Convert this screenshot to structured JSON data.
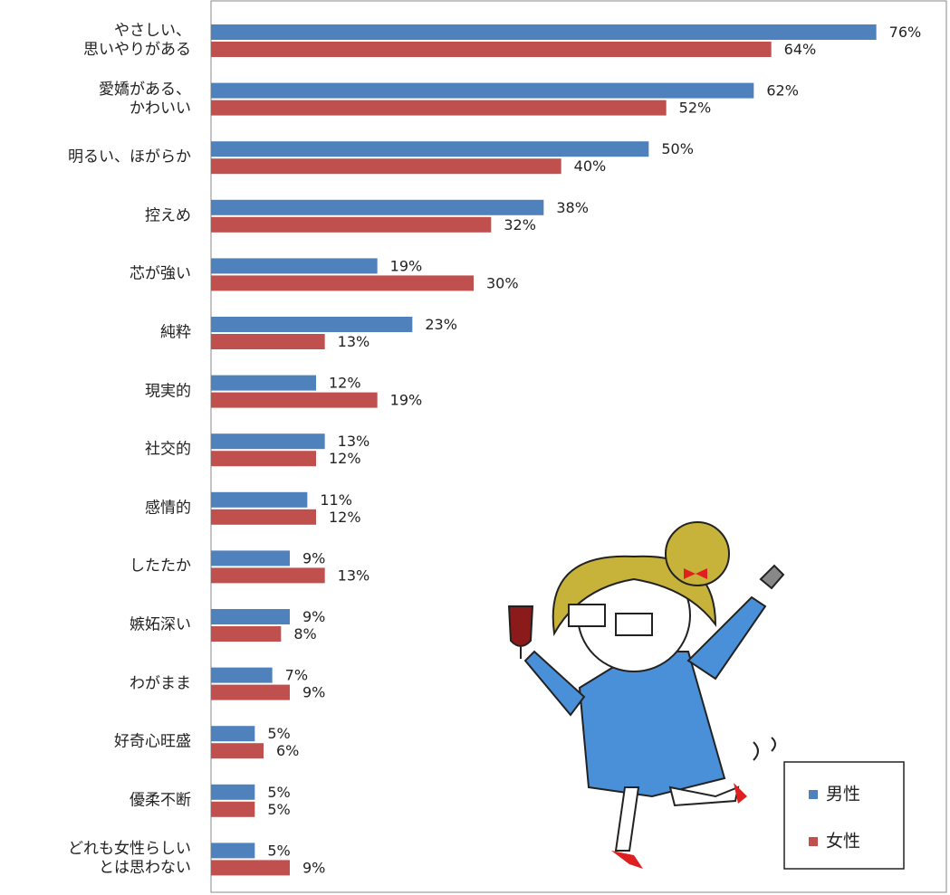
{
  "chart_data": {
    "type": "hbar",
    "categories": [
      "やさしい、\n思いやりがある",
      "愛嬌がある、\nかわいい",
      "明るい、ほがらか",
      "控えめ",
      "芯が強い",
      "純粋",
      "現実的",
      "社交的",
      "感情的",
      "したたか",
      "嫉妬深い",
      "わがまま",
      "好奇心旺盛",
      "優柔不断",
      "どれも女性らしい\nとは思わない"
    ],
    "series": [
      {
        "name": "男性",
        "color": "#4f81bd",
        "values": [
          76,
          62,
          50,
          38,
          19,
          23,
          12,
          13,
          11,
          9,
          9,
          7,
          5,
          5,
          5
        ],
        "value_labels": [
          "76%",
          "62%",
          "50%",
          "38%",
          "19%",
          "23%",
          "12%",
          "13%",
          "11%",
          "9%",
          "9%",
          "7%",
          "5%",
          "5%",
          "5%"
        ]
      },
      {
        "name": "女性",
        "color": "#c0504d",
        "values": [
          64,
          52,
          40,
          32,
          30,
          13,
          19,
          12,
          12,
          13,
          8,
          9,
          6,
          5,
          9
        ],
        "value_labels": [
          "64%",
          "52%",
          "40%",
          "32%",
          "30%",
          "13%",
          "19%",
          "12%",
          "12%",
          "13%",
          "8%",
          "9%",
          "6%",
          "5%",
          "9%"
        ]
      }
    ],
    "xlim": [
      0,
      84
    ],
    "legend": "lower right"
  }
}
